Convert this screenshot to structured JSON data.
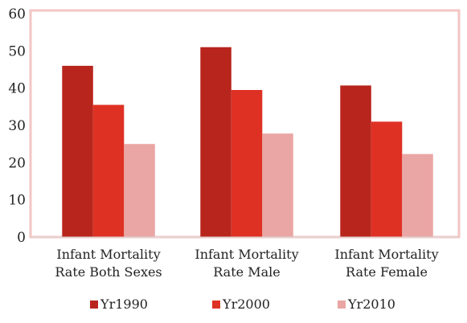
{
  "chart_data": {
    "type": "bar",
    "title": "",
    "xlabel": "",
    "ylabel": "",
    "ylim": [
      0,
      60
    ],
    "yticks": [
      0,
      10,
      20,
      30,
      40,
      50,
      60
    ],
    "grid": false,
    "legend_position": "bottom",
    "categories": [
      [
        "Infant Mortality",
        "Rate Both Sexes"
      ],
      [
        "Infant Mortality",
        "Rate Male"
      ],
      [
        "Infant Mortality",
        "Rate Female"
      ]
    ],
    "series": [
      {
        "name": "Yr1990",
        "color": "#b8251c",
        "values": [
          46,
          51,
          40.7
        ]
      },
      {
        "name": "Yr2000",
        "color": "#de3124",
        "values": [
          35.5,
          39.5,
          31
        ]
      },
      {
        "name": "Yr2010",
        "color": "#eaa6a4",
        "values": [
          25,
          27.8,
          22.3
        ]
      }
    ]
  },
  "colors": {
    "plot_border": "#f2c6c4",
    "axis": "#d9d9d9"
  }
}
